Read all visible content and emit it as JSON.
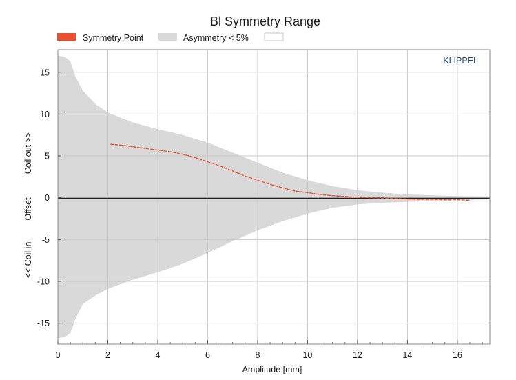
{
  "chart_data": {
    "type": "area",
    "title": "Bl Symmetry Range",
    "xlabel": "Amplitude [mm]",
    "ylabel_parts": [
      "<< Coil in",
      "Offset",
      "Coil out >>"
    ],
    "brand": "KLIPPEL",
    "xlim": [
      0,
      17.3
    ],
    "ylim": [
      -17.5,
      17.7
    ],
    "x_ticks": [
      0,
      2,
      4,
      6,
      8,
      10,
      12,
      14,
      16
    ],
    "y_ticks": [
      -15,
      -10,
      -5,
      0,
      5,
      10,
      15
    ],
    "grid": true,
    "legend": {
      "placement": "top-left",
      "entries": [
        {
          "label": "Symmetry Point",
          "color": "#e8502f",
          "kind": "swatch"
        },
        {
          "label": "Asymmetry < 5%",
          "color": "#d9d9d9",
          "kind": "swatch"
        },
        {
          "label": "",
          "color": "#ffffff",
          "kind": "box"
        }
      ]
    },
    "series": [
      {
        "name": "Asymmetry < 5%",
        "kind": "band",
        "color": "#d9d9d9",
        "x": [
          0,
          0.3,
          0.5,
          0.7,
          1.0,
          1.5,
          2.0,
          3.0,
          4.0,
          5.0,
          6.0,
          7.0,
          8.0,
          9.0,
          10.0,
          11.0,
          12.0,
          13.0,
          14.0,
          15.0,
          16.0,
          17.3
        ],
        "upper": [
          17.0,
          16.8,
          16.3,
          14.5,
          12.8,
          11.2,
          10.2,
          9.0,
          8.2,
          7.5,
          6.6,
          5.4,
          4.2,
          3.0,
          2.1,
          1.4,
          0.9,
          0.6,
          0.4,
          0.3,
          0.2,
          0.15
        ],
        "lower": [
          -16.8,
          -16.6,
          -16.2,
          -14.5,
          -12.7,
          -11.7,
          -10.9,
          -9.8,
          -8.9,
          -7.9,
          -6.6,
          -5.2,
          -3.9,
          -2.8,
          -1.9,
          -1.2,
          -0.8,
          -0.6,
          -0.5,
          -0.4,
          -0.3,
          -0.2
        ]
      },
      {
        "name": "Symmetry Point",
        "kind": "line",
        "color": "#e8502f",
        "x": [
          2.1,
          2.5,
          3.0,
          3.5,
          4.0,
          4.5,
          5.0,
          5.5,
          6.0,
          6.5,
          7.0,
          7.5,
          8.0,
          8.5,
          9.0,
          9.5,
          10.0,
          10.5,
          11.0,
          11.5,
          12.0,
          12.5,
          13.0,
          13.5,
          14.0,
          14.5,
          15.0,
          15.5,
          16.0,
          16.5
        ],
        "y": [
          6.4,
          6.3,
          6.1,
          5.9,
          5.7,
          5.5,
          5.2,
          4.8,
          4.3,
          3.8,
          3.2,
          2.6,
          2.1,
          1.6,
          1.2,
          0.8,
          0.6,
          0.4,
          0.25,
          0.15,
          0.05,
          0.0,
          -0.05,
          -0.1,
          -0.15,
          -0.2,
          -0.2,
          -0.25,
          -0.25,
          -0.3
        ]
      }
    ],
    "zero_line": {
      "y": 0,
      "color": "#000000"
    }
  }
}
